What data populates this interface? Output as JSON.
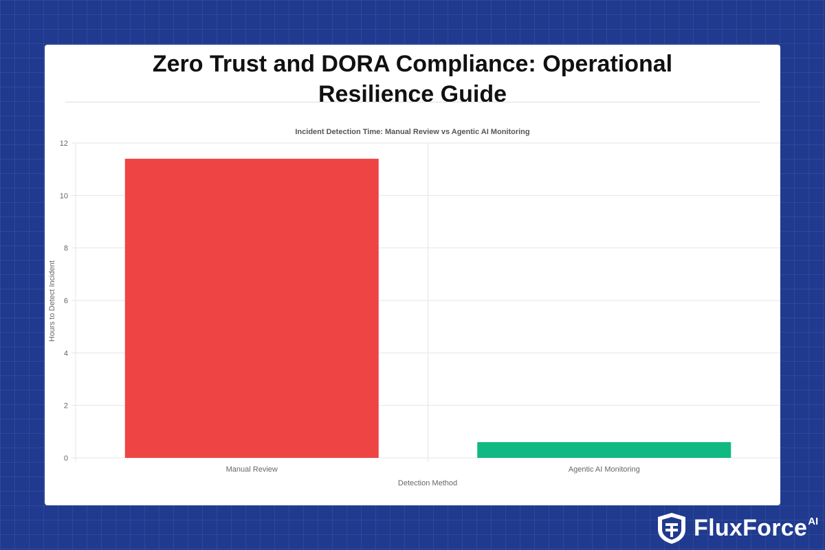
{
  "page": {
    "title_line1": "Zero Trust and DORA Compliance: Operational",
    "title_line2": "Resilience Guide"
  },
  "brand": {
    "name": "FluxForce",
    "superscript": "AI",
    "icon": "shield-logo-icon"
  },
  "colors": {
    "background": "#1f3a8f",
    "manual_bar": "#ef4444",
    "ai_bar": "#10b981"
  },
  "chart_data": {
    "type": "bar",
    "title": "Incident Detection Time: Manual Review vs Agentic AI Monitoring",
    "xlabel": "Detection Method",
    "ylabel": "Hours to Detect Incident",
    "categories": [
      "Manual Review",
      "Agentic AI Monitoring"
    ],
    "values": [
      11.4,
      0.6
    ],
    "bar_colors": [
      "#ef4444",
      "#10b981"
    ],
    "ylim": [
      0,
      12
    ],
    "yticks": [
      0,
      2,
      4,
      6,
      8,
      10,
      12
    ],
    "grid": true,
    "legend": "none"
  }
}
